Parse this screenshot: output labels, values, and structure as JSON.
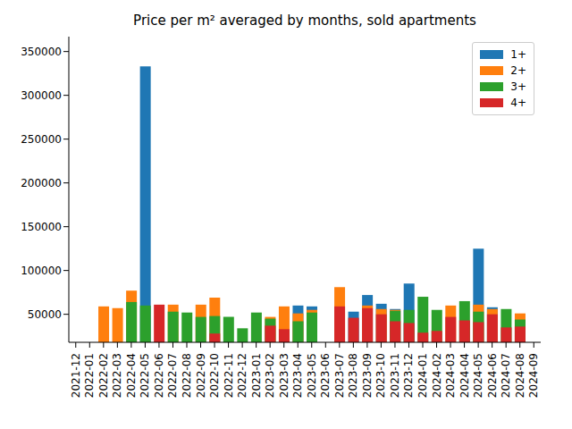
{
  "chart_data": {
    "type": "bar",
    "title": "Price per m² averaged by months, sold apartments",
    "categories": [
      "2021-12",
      "2022-01",
      "2022-02",
      "2022-03",
      "2022-04",
      "2022-05",
      "2022-06",
      "2022-07",
      "2022-08",
      "2022-09",
      "2022-10",
      "2022-11",
      "2022-12",
      "2023-01",
      "2023-02",
      "2023-03",
      "2023-04",
      "2023-05",
      "2023-06",
      "2023-07",
      "2023-08",
      "2023-09",
      "2023-10",
      "2023-11",
      "2023-12",
      "2024-01",
      "2024-02",
      "2024-03",
      "2024-04",
      "2024-05",
      "2024-06",
      "2024-07",
      "2024-08",
      "2024-09"
    ],
    "series": [
      {
        "name": "1+",
        "color": "#1f77b4",
        "values": [
          null,
          null,
          null,
          null,
          null,
          333000,
          null,
          null,
          null,
          null,
          null,
          null,
          null,
          null,
          null,
          null,
          60000,
          59000,
          null,
          null,
          53000,
          72000,
          62000,
          56000,
          85000,
          null,
          null,
          null,
          null,
          125000,
          58000,
          null,
          null,
          null
        ]
      },
      {
        "name": "2+",
        "color": "#ff7f0e",
        "values": [
          null,
          null,
          59000,
          57000,
          77000,
          null,
          null,
          61000,
          null,
          61000,
          69000,
          null,
          null,
          null,
          47000,
          59000,
          51000,
          55000,
          null,
          81000,
          null,
          60000,
          56000,
          55000,
          null,
          null,
          null,
          60000,
          null,
          61000,
          56000,
          null,
          51000,
          null
        ]
      },
      {
        "name": "3+",
        "color": "#2ca02c",
        "values": [
          null,
          null,
          null,
          null,
          64000,
          60000,
          null,
          53000,
          52000,
          47000,
          48000,
          47000,
          34000,
          52000,
          45000,
          null,
          42000,
          52000,
          null,
          null,
          null,
          null,
          null,
          54000,
          55000,
          70000,
          55000,
          null,
          65000,
          53000,
          null,
          56000,
          44000,
          null
        ]
      },
      {
        "name": "4+",
        "color": "#d62728",
        "values": [
          null,
          null,
          null,
          null,
          null,
          null,
          61000,
          null,
          null,
          null,
          28000,
          null,
          null,
          null,
          37000,
          33000,
          null,
          null,
          null,
          59000,
          46000,
          57000,
          50000,
          42000,
          40000,
          29000,
          31000,
          47000,
          43000,
          41000,
          50000,
          35000,
          36000,
          null
        ]
      }
    ],
    "ylim": [
      18000,
      367000
    ],
    "yticks": [
      50000,
      100000,
      150000,
      200000,
      250000,
      300000,
      350000
    ],
    "legend": "upper right",
    "grid": false
  }
}
